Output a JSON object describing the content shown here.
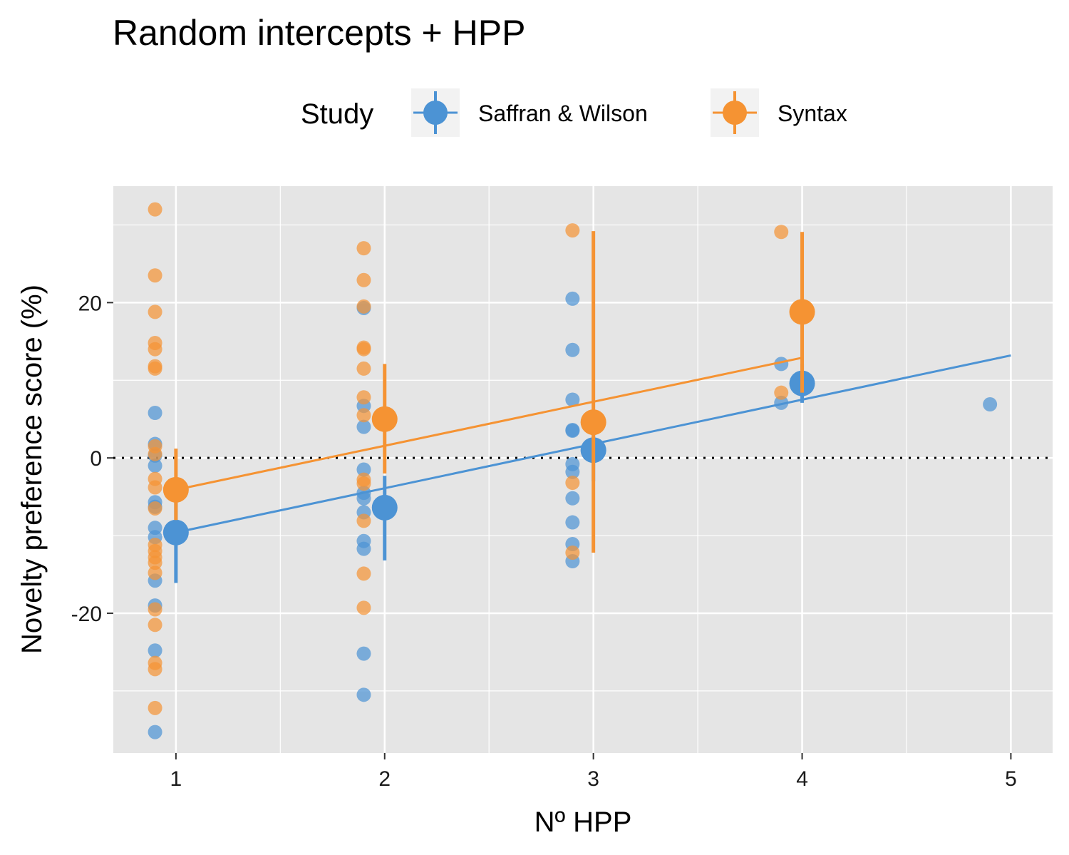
{
  "chart_data": {
    "type": "scatter",
    "title": "Random intercepts + HPP",
    "xlabel": "Nº HPP",
    "ylabel": "Novelty preference score (%)",
    "xlim": [
      0.7,
      5.2
    ],
    "ylim": [
      -38,
      35
    ],
    "x_ticks": [
      1,
      2,
      3,
      4,
      5
    ],
    "y_ticks": [
      -20,
      0,
      20
    ],
    "x_tick_labels": [
      "1",
      "2",
      "3",
      "4",
      "5"
    ],
    "y_tick_labels": [
      "-20",
      "0",
      "20"
    ],
    "zero_reference_line": 0,
    "grid": true,
    "legend": {
      "title": "Study",
      "placement": "top",
      "entries": [
        "Saffran & Wilson",
        "Syntax"
      ]
    },
    "colors": {
      "Saffran & Wilson": "#4C93D4",
      "Syntax": "#F59333",
      "panel_background": "#E5E5E5",
      "grid": "#FFFFFF"
    },
    "series": [
      {
        "name": "Saffran & Wilson",
        "points": [
          {
            "x": 0.9,
            "y": 5.8
          },
          {
            "x": 0.9,
            "y": 1.8
          },
          {
            "x": 0.9,
            "y": 0.3
          },
          {
            "x": 0.9,
            "y": -1.0
          },
          {
            "x": 0.9,
            "y": -5.7
          },
          {
            "x": 0.9,
            "y": -6.3
          },
          {
            "x": 0.9,
            "y": -9.0
          },
          {
            "x": 0.9,
            "y": -10.2
          },
          {
            "x": 0.9,
            "y": -15.8
          },
          {
            "x": 0.9,
            "y": -19.0
          },
          {
            "x": 0.9,
            "y": -24.8
          },
          {
            "x": 0.9,
            "y": -35.3
          },
          {
            "x": 1.9,
            "y": 19.3
          },
          {
            "x": 1.9,
            "y": 6.7
          },
          {
            "x": 1.9,
            "y": 4.0
          },
          {
            "x": 1.9,
            "y": -1.5
          },
          {
            "x": 1.9,
            "y": -4.5
          },
          {
            "x": 1.9,
            "y": -5.2
          },
          {
            "x": 1.9,
            "y": -7.0
          },
          {
            "x": 1.9,
            "y": -10.7
          },
          {
            "x": 1.9,
            "y": -11.7
          },
          {
            "x": 1.9,
            "y": -25.2
          },
          {
            "x": 1.9,
            "y": -30.5
          },
          {
            "x": 2.9,
            "y": 20.5
          },
          {
            "x": 2.9,
            "y": 13.9
          },
          {
            "x": 2.9,
            "y": 7.5
          },
          {
            "x": 2.9,
            "y": 3.6
          },
          {
            "x": 2.9,
            "y": 3.5
          },
          {
            "x": 2.9,
            "y": -0.8
          },
          {
            "x": 2.9,
            "y": -1.8
          },
          {
            "x": 2.9,
            "y": -5.2
          },
          {
            "x": 2.9,
            "y": -8.3
          },
          {
            "x": 2.9,
            "y": -11.1
          },
          {
            "x": 2.9,
            "y": -13.3
          },
          {
            "x": 3.9,
            "y": 12.1
          },
          {
            "x": 3.9,
            "y": 7.1
          },
          {
            "x": 4.9,
            "y": 6.9
          }
        ],
        "means": [
          {
            "x": 1,
            "y": -9.6,
            "ymin": -16.1,
            "ymax": -3.4
          },
          {
            "x": 2,
            "y": -6.4,
            "ymin": -13.2,
            "ymax": -2.3
          },
          {
            "x": 3,
            "y": 1.0,
            "ymin": -3.0,
            "ymax": 4.0
          },
          {
            "x": 4,
            "y": 9.6,
            "ymin": 7.1,
            "ymax": 12.1
          }
        ],
        "fit_line": {
          "x": [
            1,
            5
          ],
          "y": [
            -9.6,
            13.2
          ]
        }
      },
      {
        "name": "Syntax",
        "points": [
          {
            "x": 0.9,
            "y": 32.0
          },
          {
            "x": 0.9,
            "y": 23.5
          },
          {
            "x": 0.9,
            "y": 18.8
          },
          {
            "x": 0.9,
            "y": 14.8
          },
          {
            "x": 0.9,
            "y": 14.0
          },
          {
            "x": 0.9,
            "y": 11.8
          },
          {
            "x": 0.9,
            "y": 11.5
          },
          {
            "x": 0.9,
            "y": 1.5
          },
          {
            "x": 0.9,
            "y": 0.5
          },
          {
            "x": 0.9,
            "y": -2.7
          },
          {
            "x": 0.9,
            "y": -3.8
          },
          {
            "x": 0.9,
            "y": -6.5
          },
          {
            "x": 0.9,
            "y": -11.2
          },
          {
            "x": 0.9,
            "y": -12.0
          },
          {
            "x": 0.9,
            "y": -12.8
          },
          {
            "x": 0.9,
            "y": -13.5
          },
          {
            "x": 0.9,
            "y": -14.8
          },
          {
            "x": 0.9,
            "y": -19.5
          },
          {
            "x": 0.9,
            "y": -21.5
          },
          {
            "x": 0.9,
            "y": -26.4
          },
          {
            "x": 0.9,
            "y": -27.2
          },
          {
            "x": 0.9,
            "y": -32.2
          },
          {
            "x": 1.9,
            "y": 27.0
          },
          {
            "x": 1.9,
            "y": 22.9
          },
          {
            "x": 1.9,
            "y": 19.5
          },
          {
            "x": 1.9,
            "y": 14.2
          },
          {
            "x": 1.9,
            "y": 14.0
          },
          {
            "x": 1.9,
            "y": 11.5
          },
          {
            "x": 1.9,
            "y": 7.8
          },
          {
            "x": 1.9,
            "y": 5.5
          },
          {
            "x": 1.9,
            "y": -2.8
          },
          {
            "x": 1.9,
            "y": -3.3
          },
          {
            "x": 1.9,
            "y": -8.1
          },
          {
            "x": 1.9,
            "y": -14.9
          },
          {
            "x": 1.9,
            "y": -19.3
          },
          {
            "x": 2.9,
            "y": 29.3
          },
          {
            "x": 2.9,
            "y": -3.2
          },
          {
            "x": 2.9,
            "y": -12.2
          },
          {
            "x": 3.9,
            "y": 29.1
          },
          {
            "x": 3.9,
            "y": 8.4
          }
        ],
        "means": [
          {
            "x": 1,
            "y": -4.1,
            "ymin": -8.0,
            "ymax": 1.2
          },
          {
            "x": 2,
            "y": 5.0,
            "ymin": -2.0,
            "ymax": 12.1
          },
          {
            "x": 3,
            "y": 4.6,
            "ymin": -12.2,
            "ymax": 29.2
          },
          {
            "x": 4,
            "y": 18.8,
            "ymin": 8.4,
            "ymax": 29.1
          }
        ],
        "fit_line": {
          "x": [
            1,
            4
          ],
          "y": [
            -4.1,
            12.9
          ]
        }
      }
    ]
  }
}
